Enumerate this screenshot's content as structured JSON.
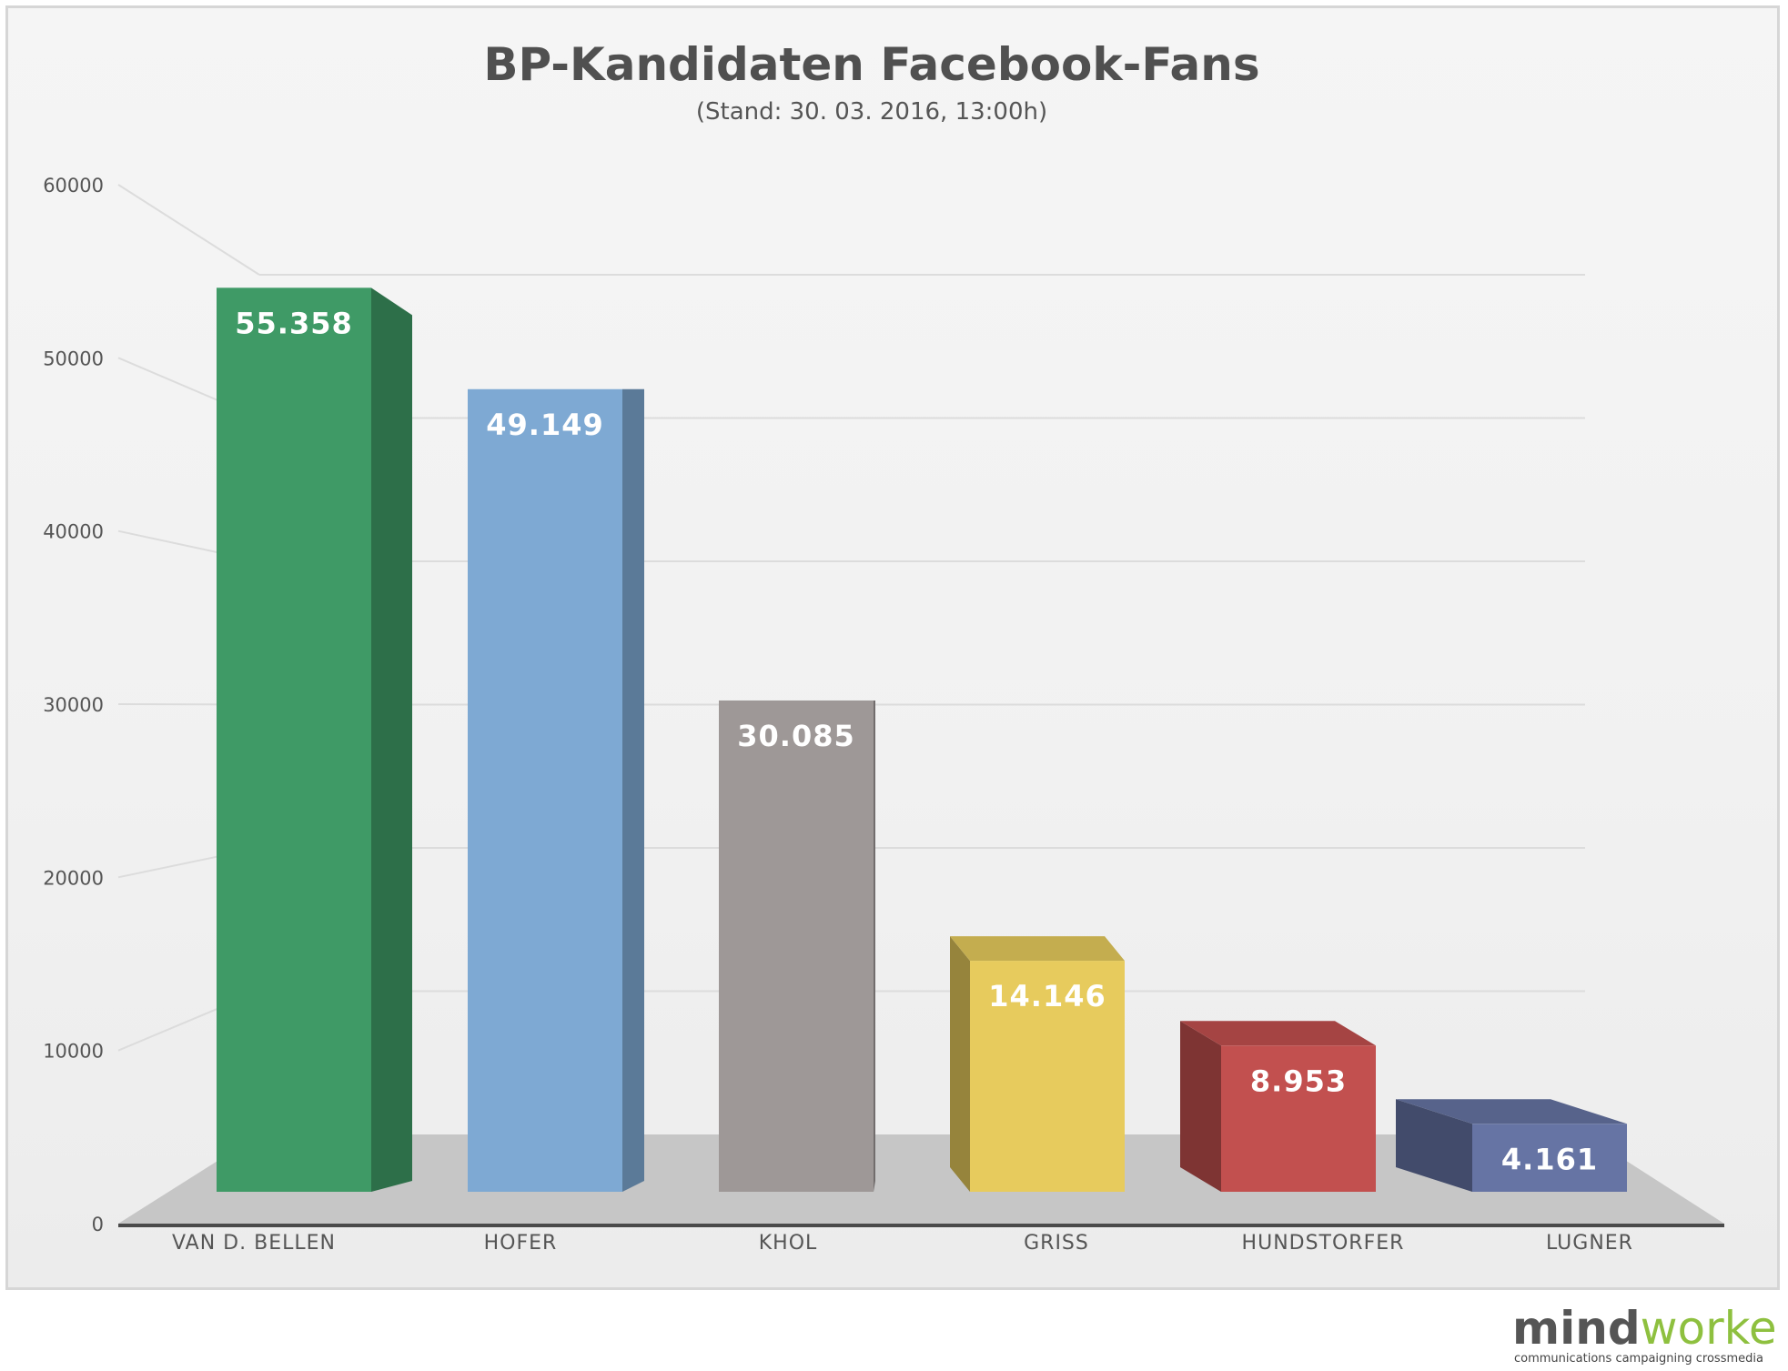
{
  "chart_data": {
    "type": "bar",
    "title": "BP-Kandidaten Facebook-Fans",
    "subtitle": "(Stand: 30. 03. 2016, 13:00h)",
    "categories": [
      "VAN D. BELLEN",
      "HOFER",
      "KHOL",
      "GRISS",
      "HUNDSTORFER",
      "LUGNER"
    ],
    "values": [
      55358,
      49149,
      30085,
      14146,
      8953,
      4161
    ],
    "value_labels": [
      "55.358",
      "49.149",
      "30.085",
      "14.146",
      "8.953",
      "4.161"
    ],
    "y_ticks": [
      "0",
      "10000",
      "20000",
      "30000",
      "40000",
      "50000",
      "60000"
    ],
    "ylim": [
      0,
      60000
    ],
    "xlabel": "",
    "ylabel": "",
    "grid": true,
    "legend": "none",
    "colors": {
      "bars": [
        "#3f9a66",
        "#7ea9d3",
        "#9e9897",
        "#e7cb5d",
        "#c2504f",
        "#6674a4"
      ],
      "floor": "#c6c6c6",
      "grid": "#dcdcdc"
    }
  },
  "branding": {
    "logo_part1": "mind",
    "logo_part2": "worker",
    "tagline": "communications campaigning crossmedia"
  }
}
